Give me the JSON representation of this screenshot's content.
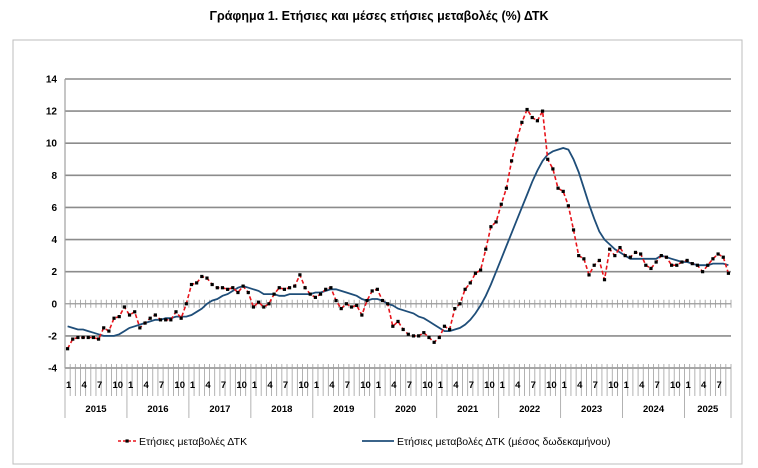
{
  "chart_data": {
    "type": "line",
    "title": "Γράφημα 1. Ετήσιες και μέσες ετήσιες μεταβολές (%) ΔΤΚ",
    "xlabel": "",
    "ylabel": "",
    "ylim": [
      -4,
      14
    ],
    "yticks": [
      -4,
      -2,
      0,
      2,
      4,
      6,
      8,
      10,
      12,
      14
    ],
    "grid": true,
    "legend_position": "bottom",
    "start": "2015-01",
    "month_tick_labels": [
      "1",
      "4",
      "7",
      "10"
    ],
    "years": [
      "2015",
      "2016",
      "2017",
      "2018",
      "2019",
      "2020",
      "2021",
      "2022",
      "2023",
      "2024",
      "2025"
    ],
    "series": [
      {
        "name": "Ετήσιες μεταβολές ΔΤΚ",
        "color": "#e8141b",
        "marker_color": "#000000",
        "style": "dashed-markers",
        "values": [
          -2.8,
          -2.2,
          -2.1,
          -2.1,
          -2.1,
          -2.1,
          -2.2,
          -1.5,
          -1.7,
          -0.9,
          -0.8,
          -0.2,
          -0.7,
          -0.5,
          -1.5,
          -1.2,
          -0.9,
          -0.7,
          -1.0,
          -1.0,
          -1.0,
          -0.5,
          -0.9,
          0.0,
          1.2,
          1.3,
          1.7,
          1.6,
          1.2,
          1.0,
          1.0,
          0.9,
          1.0,
          0.7,
          1.1,
          0.7,
          -0.2,
          0.1,
          -0.2,
          0.0,
          0.6,
          1.0,
          0.9,
          1.0,
          1.1,
          1.8,
          1.0,
          0.6,
          0.4,
          0.6,
          0.9,
          1.0,
          0.2,
          -0.3,
          0.0,
          -0.2,
          -0.1,
          -0.7,
          0.2,
          0.8,
          0.9,
          0.2,
          0.0,
          -1.4,
          -1.1,
          -1.6,
          -1.9,
          -2.0,
          -2.0,
          -1.8,
          -2.1,
          -2.4,
          -2.1,
          -1.4,
          -1.6,
          -0.3,
          0.0,
          0.9,
          1.3,
          1.9,
          2.1,
          3.4,
          4.8,
          5.1,
          6.2,
          7.2,
          8.9,
          10.2,
          11.3,
          12.1,
          11.6,
          11.4,
          12.0,
          9.0,
          8.4,
          7.2,
          7.0,
          6.1,
          4.6,
          3.0,
          2.8,
          1.8,
          2.4,
          2.7,
          1.5,
          3.4,
          3.0,
          3.5,
          3.0,
          2.9,
          3.2,
          3.1,
          2.4,
          2.2,
          2.6,
          3.0,
          2.9,
          2.4,
          2.4,
          2.6,
          2.7,
          2.5,
          2.4,
          2.0,
          2.4,
          2.8,
          3.1,
          2.9,
          1.9
        ]
      },
      {
        "name": "Ετήσιες μεταβολές ΔΤΚ (μέσος δωδεκαμήνου)",
        "color": "#1f4e79",
        "style": "solid",
        "values": [
          -1.4,
          -1.5,
          -1.6,
          -1.6,
          -1.7,
          -1.8,
          -1.9,
          -2.0,
          -2.0,
          -2.0,
          -1.9,
          -1.7,
          -1.5,
          -1.4,
          -1.3,
          -1.2,
          -1.1,
          -1.0,
          -1.0,
          -0.9,
          -0.9,
          -0.8,
          -0.8,
          -0.8,
          -0.7,
          -0.5,
          -0.3,
          0.0,
          0.2,
          0.3,
          0.5,
          0.6,
          0.8,
          1.0,
          1.1,
          1.0,
          0.9,
          0.8,
          0.6,
          0.6,
          0.6,
          0.5,
          0.5,
          0.6,
          0.6,
          0.6,
          0.6,
          0.6,
          0.7,
          0.7,
          0.8,
          0.9,
          0.9,
          0.8,
          0.7,
          0.6,
          0.5,
          0.3,
          0.2,
          0.3,
          0.3,
          0.2,
          0.0,
          -0.1,
          -0.3,
          -0.4,
          -0.5,
          -0.6,
          -0.8,
          -0.9,
          -1.1,
          -1.3,
          -1.5,
          -1.7,
          -1.7,
          -1.6,
          -1.5,
          -1.3,
          -1.0,
          -0.6,
          -0.1,
          0.5,
          1.2,
          2.0,
          2.8,
          3.6,
          4.4,
          5.2,
          6.0,
          6.8,
          7.6,
          8.3,
          8.9,
          9.3,
          9.5,
          9.6,
          9.7,
          9.6,
          9.0,
          8.2,
          7.2,
          6.2,
          5.3,
          4.5,
          4.0,
          3.7,
          3.4,
          3.2,
          3.0,
          2.8,
          2.8,
          2.8,
          2.8,
          2.8,
          2.8,
          3.0,
          2.9,
          2.8,
          2.7,
          2.6,
          2.6,
          2.5,
          2.4,
          2.4,
          2.4,
          2.5,
          2.5,
          2.5,
          2.4
        ]
      }
    ]
  }
}
